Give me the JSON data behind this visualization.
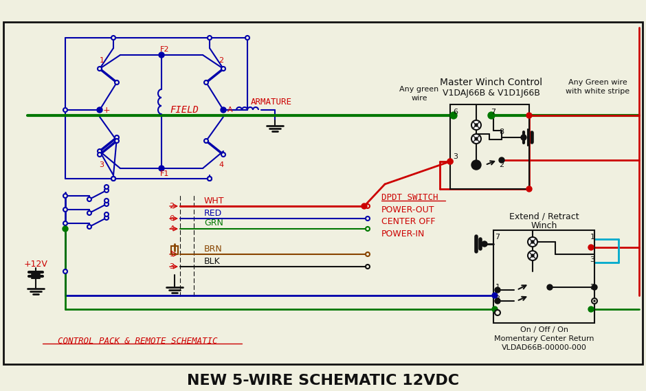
{
  "title": "NEW 5-WIRE SCHEMATIC 12VDC",
  "bg_color": "#f0f0e0",
  "blue": "#0000AA",
  "red": "#CC0000",
  "green": "#007700",
  "cyan": "#00AACC",
  "brown": "#884400",
  "black": "#111111",
  "gray": "#888888",
  "red_text": "#CC0000",
  "master_title": "Master Winch Control",
  "master_model": "V1DAJ66B & V1D1J66B",
  "extend_title": "Extend / Retract",
  "extend_sub": "Winch",
  "on_off_on": "On / Off / On",
  "momentary": "Momentary Center Return",
  "vldad": "VLDAD66B-00000-000",
  "any_green_left": "Any green",
  "wire_label": "wire",
  "any_green_right": "Any Green wire",
  "white_stripe": "with white stripe",
  "plus12v": "+12V",
  "control_pack_label": "CONTROL PACK & REMOTE SCHEMATIC",
  "armature_label": "ARMATURE",
  "field_label": "FIELD",
  "dpdt_label": "DPDT SWITCH",
  "power_out": "POWER-OUT",
  "center_off": "CENTER OFF",
  "power_in": "POWER-IN",
  "wht": "WHT",
  "red_wire": "RED",
  "grn": "GRN",
  "brn": "BRN",
  "blk": "BLK"
}
